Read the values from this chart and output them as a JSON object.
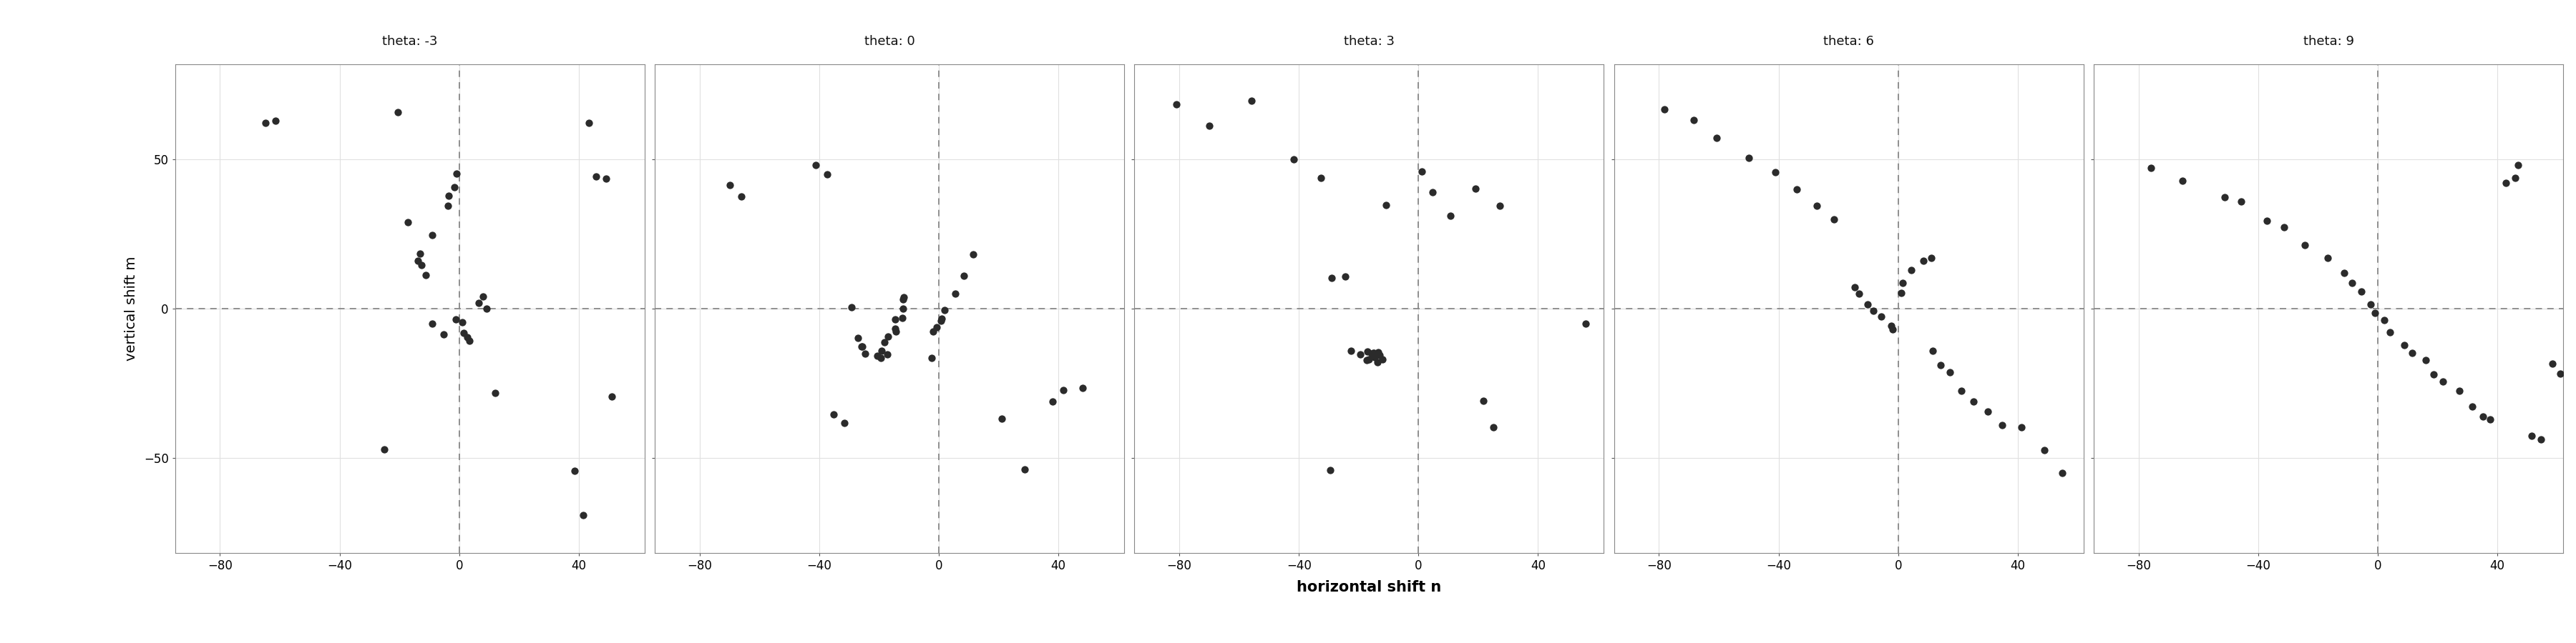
{
  "facets": [
    "theta: -3",
    "theta: 0",
    "theta: 3",
    "theta: 6",
    "theta: 9"
  ],
  "point_color": "#2b2b2b",
  "point_size": 55,
  "point_alpha": 1.0,
  "background_color": "#ffffff",
  "panel_background": "#ffffff",
  "strip_background": "#dcdcdc",
  "strip_border": "#888888",
  "grid_color": "#e0e0e0",
  "dashed_line_color": "#888888",
  "xlabel": "horizontal shift n",
  "ylabel": "vertical shift m",
  "xlim": [
    -95,
    62
  ],
  "ylim": [
    -82,
    82
  ],
  "xticks": [
    -80,
    -40,
    0,
    40
  ],
  "yticks": [
    -50,
    0,
    50
  ],
  "data": {
    "theta_-3": {
      "x": [
        -65,
        -62,
        -20,
        -25,
        -18,
        -14,
        -13,
        -12,
        -10,
        -9,
        -8,
        -5,
        -4,
        -3,
        -2,
        -1,
        0,
        1,
        2,
        3,
        4,
        6,
        8,
        10,
        12,
        38,
        42,
        44,
        46,
        48,
        50
      ],
      "y": [
        62,
        62,
        65,
        -47,
        30,
        18,
        16,
        15,
        12,
        25,
        -5,
        -8,
        35,
        38,
        40,
        45,
        -3,
        -4,
        -8,
        -9,
        -10,
        2,
        5,
        0,
        -28,
        -55,
        -70,
        62,
        44,
        44,
        -30
      ]
    },
    "theta_0": {
      "x": [
        -70,
        -67,
        -42,
        -38,
        -34,
        -32,
        -29,
        -27,
        -26,
        -25,
        -24,
        -21,
        -20,
        -20,
        -18,
        -17,
        -16,
        -15,
        -14,
        -14,
        -13,
        -13,
        -12,
        -11,
        -3,
        -2,
        -1,
        0,
        1,
        2,
        5,
        8,
        12,
        22,
        28,
        38,
        42,
        48
      ],
      "y": [
        42,
        38,
        48,
        45,
        -35,
        -38,
        1,
        -10,
        -12,
        -13,
        -16,
        -15,
        -17,
        -14,
        -16,
        -12,
        -10,
        -8,
        -7,
        -4,
        -3,
        0,
        3,
        5,
        -17,
        -8,
        -7,
        -4,
        -3,
        0,
        5,
        12,
        18,
        -38,
        -55,
        -32,
        -27,
        -27
      ]
    },
    "theta_3": {
      "x": [
        -82,
        -70,
        -55,
        -42,
        -33,
        -30,
        -28,
        -25,
        -22,
        -20,
        -18,
        -17,
        -17,
        -16,
        -16,
        -15,
        -15,
        -14,
        -14,
        -13,
        -12,
        -10,
        2,
        5,
        10,
        18,
        22,
        25,
        28,
        55
      ],
      "y": [
        68,
        62,
        70,
        50,
        45,
        -55,
        10,
        12,
        -15,
        -15,
        -16,
        -17,
        -14,
        -15,
        -16,
        -16,
        -17,
        -18,
        -15,
        -16,
        -16,
        35,
        45,
        38,
        30,
        40,
        -32,
        -40,
        35,
        -5
      ]
    },
    "theta_6": {
      "x": [
        -78,
        -68,
        -60,
        -50,
        -40,
        -35,
        -28,
        -22,
        -15,
        -12,
        -10,
        -8,
        -5,
        -3,
        -2,
        0,
        2,
        5,
        8,
        10,
        12,
        15,
        18,
        22,
        25,
        30,
        35,
        42,
        48,
        55
      ],
      "y": [
        68,
        62,
        58,
        50,
        45,
        40,
        35,
        30,
        8,
        5,
        2,
        0,
        -2,
        -5,
        -8,
        5,
        8,
        12,
        15,
        18,
        -15,
        -18,
        -22,
        -28,
        -32,
        -35,
        -38,
        -40,
        -48,
        -55
      ]
    },
    "theta_9": {
      "x": [
        -75,
        -65,
        -52,
        -45,
        -38,
        -32,
        -25,
        -18,
        -12,
        -8,
        -5,
        -3,
        0,
        2,
        5,
        8,
        12,
        15,
        18,
        22,
        28,
        32,
        35,
        38,
        42,
        45,
        48,
        52,
        55,
        58,
        62
      ],
      "y": [
        48,
        42,
        38,
        35,
        30,
        28,
        22,
        18,
        12,
        8,
        5,
        2,
        -2,
        -5,
        -8,
        -12,
        -15,
        -18,
        -22,
        -25,
        -28,
        -32,
        -35,
        -38,
        42,
        45,
        48,
        -42,
        -45,
        -18,
        -22
      ]
    }
  }
}
